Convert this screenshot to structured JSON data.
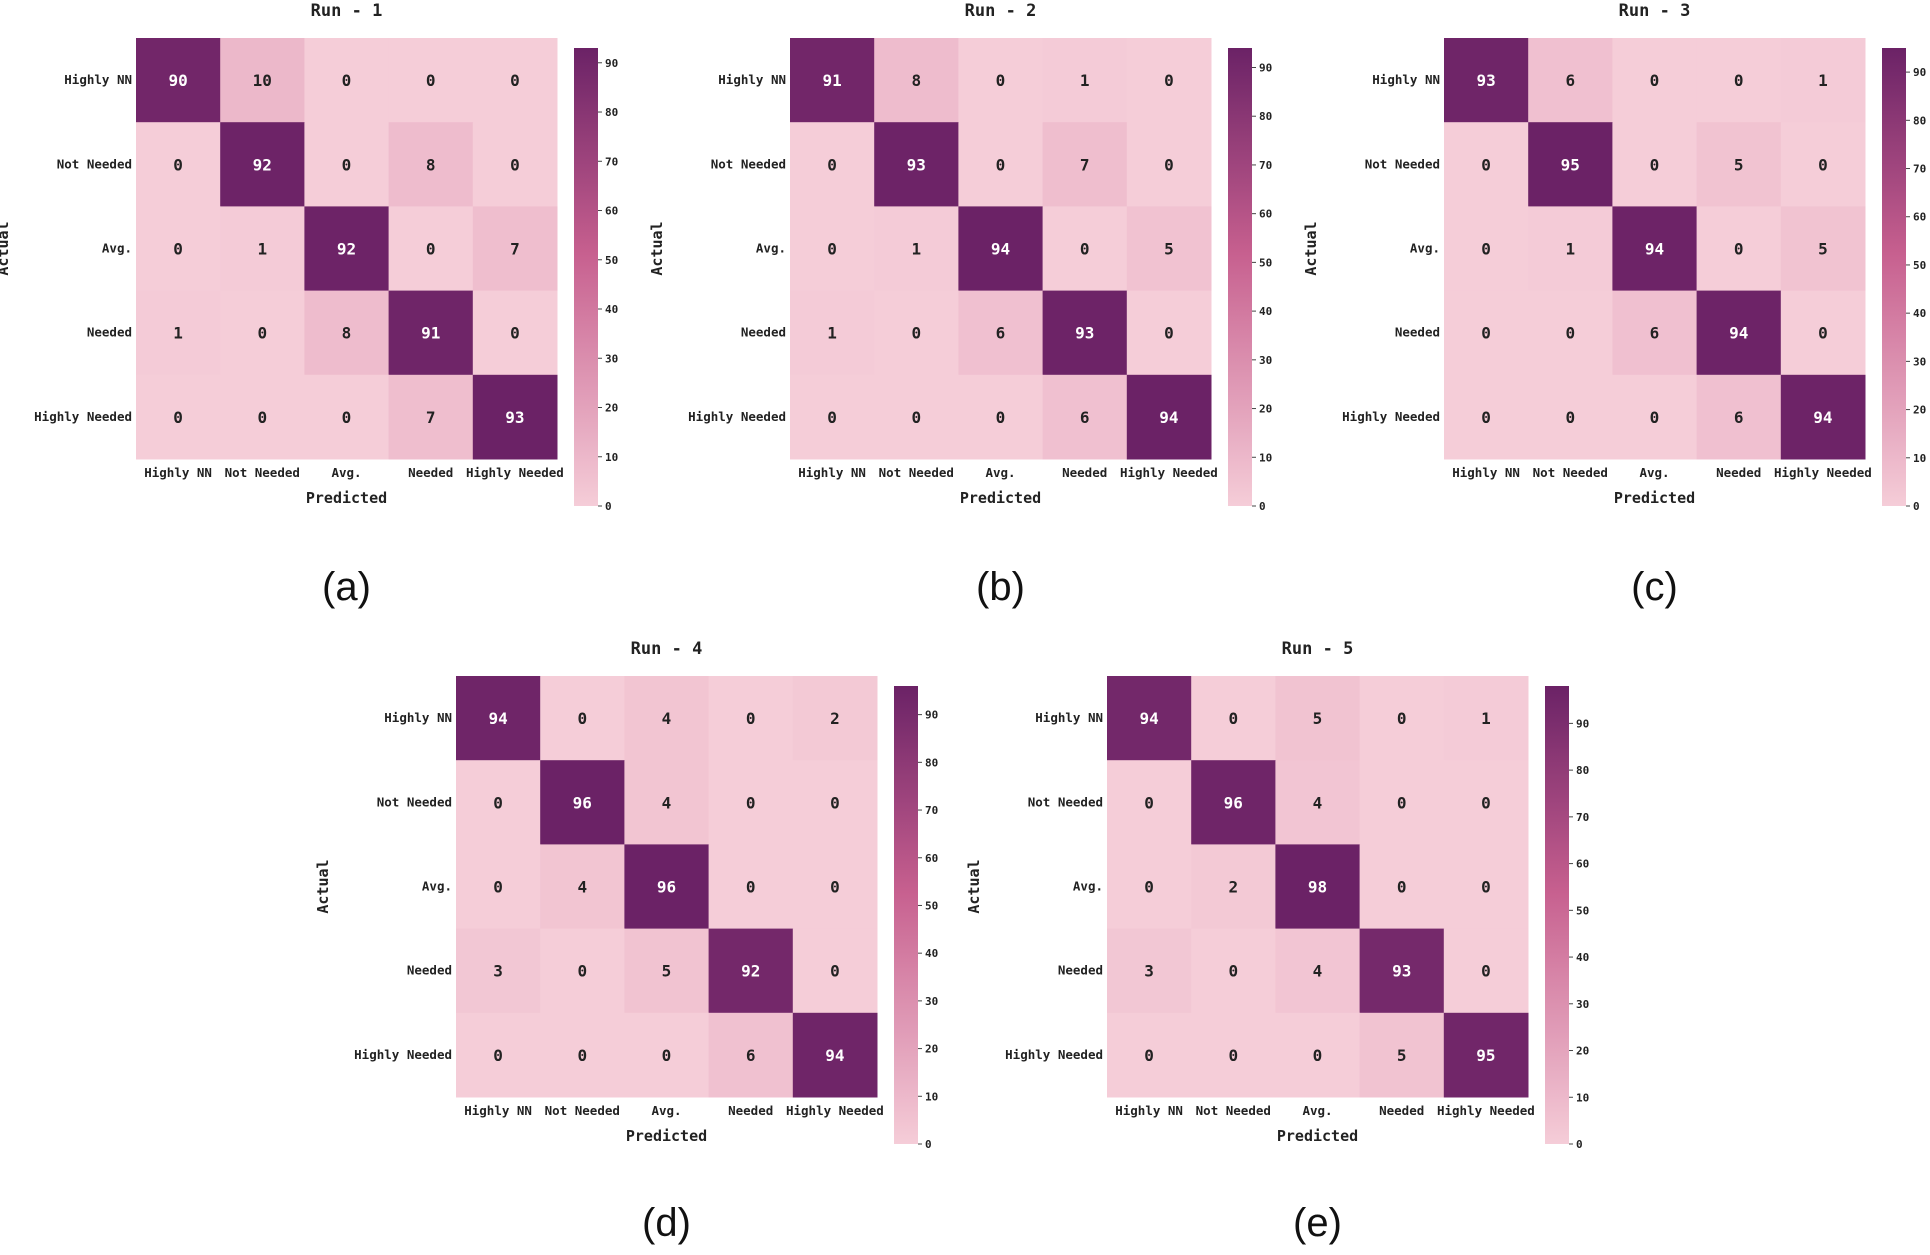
{
  "chart_data": [
    {
      "type": "heatmap",
      "title": "Run - 1",
      "caption": "(a)",
      "xlabel": "Predicted",
      "ylabel": "Actual",
      "categories": [
        "Highly NN",
        "Not Needed",
        "Avg.",
        "Needed",
        "Highly Needed"
      ],
      "matrix": [
        [
          90,
          10,
          0,
          0,
          0
        ],
        [
          0,
          92,
          0,
          8,
          0
        ],
        [
          0,
          1,
          92,
          0,
          7
        ],
        [
          1,
          0,
          8,
          91,
          0
        ],
        [
          0,
          0,
          0,
          7,
          93
        ]
      ],
      "colorbar_range": [
        0,
        93
      ],
      "colorbar_ticks": [
        0,
        10,
        20,
        30,
        40,
        50,
        60,
        70,
        80,
        90
      ]
    },
    {
      "type": "heatmap",
      "title": "Run - 2",
      "caption": "(b)",
      "xlabel": "Predicted",
      "ylabel": "Actual",
      "categories": [
        "Highly NN",
        "Not Needed",
        "Avg.",
        "Needed",
        "Highly Needed"
      ],
      "matrix": [
        [
          91,
          8,
          0,
          1,
          0
        ],
        [
          0,
          93,
          0,
          7,
          0
        ],
        [
          0,
          1,
          94,
          0,
          5
        ],
        [
          1,
          0,
          6,
          93,
          0
        ],
        [
          0,
          0,
          0,
          6,
          94
        ]
      ],
      "colorbar_range": [
        0,
        94
      ],
      "colorbar_ticks": [
        0,
        10,
        20,
        30,
        40,
        50,
        60,
        70,
        80,
        90
      ]
    },
    {
      "type": "heatmap",
      "title": "Run - 3",
      "caption": "(c)",
      "xlabel": "Predicted",
      "ylabel": "Actual",
      "categories": [
        "Highly NN",
        "Not Needed",
        "Avg.",
        "Needed",
        "Highly Needed"
      ],
      "matrix": [
        [
          93,
          6,
          0,
          0,
          1
        ],
        [
          0,
          95,
          0,
          5,
          0
        ],
        [
          0,
          1,
          94,
          0,
          5
        ],
        [
          0,
          0,
          6,
          94,
          0
        ],
        [
          0,
          0,
          0,
          6,
          94
        ]
      ],
      "colorbar_range": [
        0,
        95
      ],
      "colorbar_ticks": [
        0,
        10,
        20,
        30,
        40,
        50,
        60,
        70,
        80,
        90
      ]
    },
    {
      "type": "heatmap",
      "title": "Run - 4",
      "caption": "(d)",
      "xlabel": "Predicted",
      "ylabel": "Actual",
      "categories": [
        "Highly NN",
        "Not Needed",
        "Avg.",
        "Needed",
        "Highly Needed"
      ],
      "matrix": [
        [
          94,
          0,
          4,
          0,
          2
        ],
        [
          0,
          96,
          4,
          0,
          0
        ],
        [
          0,
          4,
          96,
          0,
          0
        ],
        [
          3,
          0,
          5,
          92,
          0
        ],
        [
          0,
          0,
          0,
          6,
          94
        ]
      ],
      "colorbar_range": [
        0,
        96
      ],
      "colorbar_ticks": [
        0,
        10,
        20,
        30,
        40,
        50,
        60,
        70,
        80,
        90
      ]
    },
    {
      "type": "heatmap",
      "title": "Run - 5",
      "caption": "(e)",
      "xlabel": "Predicted",
      "ylabel": "Actual",
      "categories": [
        "Highly NN",
        "Not Needed",
        "Avg.",
        "Needed",
        "Highly Needed"
      ],
      "matrix": [
        [
          94,
          0,
          5,
          0,
          1
        ],
        [
          0,
          96,
          4,
          0,
          0
        ],
        [
          0,
          2,
          98,
          0,
          0
        ],
        [
          3,
          0,
          4,
          93,
          0
        ],
        [
          0,
          0,
          0,
          5,
          95
        ]
      ],
      "colorbar_range": [
        0,
        98
      ],
      "colorbar_ticks": [
        0,
        10,
        20,
        30,
        40,
        50,
        60,
        70,
        80,
        90
      ]
    }
  ],
  "colors": {
    "low": "#f5cdd8",
    "mid": "#c7608f",
    "high": "#6b2266",
    "text_dark": "#222222",
    "text_light": "#ffffff"
  }
}
